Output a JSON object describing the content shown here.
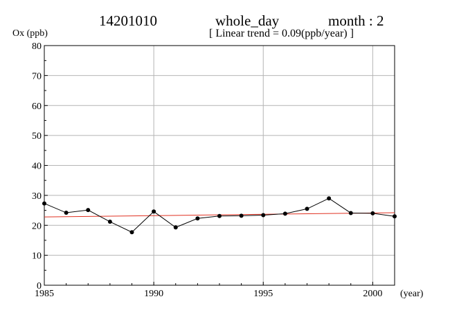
{
  "header": {
    "station": "14201010",
    "period": "whole_day",
    "month": "month : 2",
    "trend_text": "[ Linear trend = 0.09(ppb/year) ]"
  },
  "colors": {
    "series": "#000000",
    "trend": "#e03020",
    "grid": "#b4b4b4",
    "axis": "#000000"
  },
  "chart_data": {
    "type": "line",
    "xlabel": "(year)",
    "ylabel": "Ox (ppb)",
    "xlim": [
      1985,
      2001
    ],
    "ylim": [
      0,
      80
    ],
    "x_ticks": [
      1985,
      1990,
      1995,
      2000
    ],
    "y_ticks": [
      0,
      10,
      20,
      30,
      40,
      50,
      60,
      70,
      80
    ],
    "grid": true,
    "series": [
      {
        "x": [
          1985,
          1986,
          1987,
          1988,
          1989,
          1990,
          1991,
          1992,
          1993,
          1994,
          1995,
          1996,
          1997,
          1998,
          1999,
          2000,
          2001
        ],
        "values": [
          27.3,
          24.2,
          25.1,
          21.2,
          17.7,
          24.6,
          19.3,
          22.3,
          23.1,
          23.2,
          23.4,
          23.9,
          25.5,
          29.0,
          24.1,
          24.0,
          23.0
        ]
      }
    ],
    "trend_line": {
      "slope": 0.09,
      "x": [
        1985,
        2001
      ],
      "values": [
        22.8,
        24.2
      ]
    }
  }
}
